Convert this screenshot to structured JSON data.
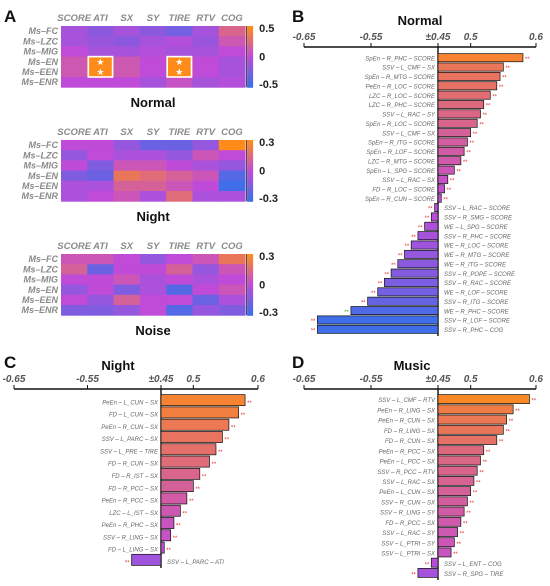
{
  "colors": {
    "cold": "#3f6ee8",
    "mid": "#c04bd8",
    "hot": "#ff8c1a",
    "sig_red": "#e03030",
    "sig_green": "#2eaa2e"
  },
  "panels": {
    "A": {
      "label": "A",
      "heatmaps": [
        {
          "title": "Normal",
          "cbar_ticks": [
            "0.5",
            "0",
            "-0.5"
          ],
          "vmin": -0.5,
          "vmax": 0.5,
          "columns": [
            "SCORE",
            "ATI",
            "SX",
            "SY",
            "TIRE",
            "RTV",
            "COG"
          ],
          "rows": [
            "Ms–FC",
            "Ms–LZC",
            "Ms–MIG",
            "Ms–EN",
            "Ms–EEN",
            "Ms–ENR"
          ],
          "values": [
            [
              -0.1,
              -0.2,
              -0.1,
              -0.2,
              -0.3,
              -0.1,
              0.2
            ],
            [
              -0.1,
              -0.15,
              -0.2,
              -0.1,
              -0.05,
              -0.15,
              0.1
            ],
            [
              0.0,
              -0.1,
              -0.1,
              -0.05,
              -0.1,
              -0.1,
              0.0
            ],
            [
              0.1,
              0.5,
              0.1,
              0.0,
              0.5,
              0.0,
              -0.1
            ],
            [
              0.1,
              0.5,
              0.1,
              0.0,
              0.5,
              0.0,
              -0.1
            ],
            [
              0.0,
              0.0,
              0.0,
              -0.1,
              0.05,
              -0.1,
              -0.05
            ]
          ],
          "highlight_rows": [
            3,
            4
          ],
          "highlight_cols": [
            1,
            4
          ]
        },
        {
          "title": "Night",
          "cbar_ticks": [
            "0.3",
            "0",
            "-0.3"
          ],
          "vmin": -0.3,
          "vmax": 0.3,
          "columns": [
            "SCORE",
            "ATI",
            "SX",
            "SY",
            "TIRE",
            "RTV",
            "COG"
          ],
          "rows": [
            "Ms–FC",
            "Ms–LZC",
            "Ms–MIG",
            "Ms–EN",
            "Ms–EEN",
            "Ms–ENR"
          ],
          "values": [
            [
              0.0,
              0.0,
              -0.1,
              -0.2,
              -0.2,
              -0.1,
              0.3
            ],
            [
              -0.1,
              0.0,
              -0.05,
              -0.05,
              -0.1,
              0.05,
              0.0
            ],
            [
              0.0,
              -0.15,
              0.05,
              0.05,
              0.0,
              -0.05,
              -0.1
            ],
            [
              -0.15,
              -0.2,
              0.2,
              0.15,
              0.1,
              0.05,
              -0.25
            ],
            [
              -0.05,
              -0.05,
              0.1,
              0.1,
              0.05,
              0.0,
              -0.3
            ],
            [
              -0.05,
              0.0,
              0.05,
              -0.05,
              0.15,
              -0.05,
              -0.05
            ]
          ]
        },
        {
          "title": "Noise",
          "cbar_ticks": [
            "0.3",
            "0",
            "-0.3"
          ],
          "vmin": -0.3,
          "vmax": 0.3,
          "columns": [
            "SCORE",
            "ATI",
            "SX",
            "SY",
            "TIRE",
            "RTV",
            "COG"
          ],
          "rows": [
            "Ms–FC",
            "Ms–LZC",
            "Ms–MIG",
            "Ms–EN",
            "Ms–EEN",
            "Ms–ENR"
          ],
          "values": [
            [
              0.05,
              0.05,
              0.0,
              -0.1,
              0.0,
              0.05,
              0.2
            ],
            [
              0.1,
              -0.2,
              0.0,
              0.0,
              0.1,
              -0.1,
              0.05
            ],
            [
              0.0,
              0.0,
              0.05,
              -0.05,
              0.0,
              -0.05,
              0.0
            ],
            [
              -0.1,
              0.0,
              -0.15,
              -0.05,
              -0.25,
              0.0,
              0.05
            ],
            [
              0.0,
              -0.1,
              0.1,
              0.0,
              0.0,
              -0.2,
              -0.05
            ],
            [
              -0.15,
              -0.15,
              -0.1,
              0.0,
              -0.25,
              -0.1,
              -0.15
            ]
          ]
        }
      ]
    },
    "B": {
      "label": "B",
      "title": "Normal"
    },
    "C": {
      "label": "C",
      "title": "Night"
    },
    "D": {
      "label": "D",
      "title": "Music"
    },
    "x_ticks": [
      "-0.65",
      "-0.55",
      "±0.45",
      "0.5",
      "0.6"
    ]
  },
  "chart_data": [
    {
      "type": "heatmap",
      "panel": "A",
      "title": "Normal"
    },
    {
      "type": "heatmap",
      "panel": "A",
      "title": "Night"
    },
    {
      "type": "heatmap",
      "panel": "A",
      "title": "Noise"
    },
    {
      "type": "bar",
      "panel": "B",
      "title": "Normal",
      "orientation": "horizontal",
      "x_ticks": [
        -0.65,
        -0.55,
        0.45,
        0.5,
        0.6
      ],
      "axis_break": "±0.45",
      "categories": [
        "SpEn – R_PHC – SCORE",
        "SSV – L_CMF – SX",
        "SpEn – R_MTG – SCORE",
        "PeEn – R_LOC – SCORE",
        "LZC – R_LOC – SCORE",
        "LZC – R_PHC – SCORE",
        "SSV – L_RAC – SY",
        "SpEn – R_LOC – SCORE",
        "SSV – L_CMF – SX",
        "SpEn – R_ITG – SCORE",
        "SpEn – R_LOF – SCORE",
        "LZC – R_MTG – SCORE",
        "SpEn – L_SPG – SCORE",
        "SSV – L_RAC – SX",
        "FD – R_LOC – SCORE",
        "SpEn – R_CUN – SCORE",
        "SSV – L_RAC – SCORE",
        "SSV – R_SMG – SCORE",
        "WE – L_SPG – SCORE",
        "SSV – R_PHC – SCORE",
        "WE – R_LOC – SCORE",
        "WE – R_MTG – SCORE",
        "WE – R_ITG – SCORE",
        "SSV – R_POPE – SCORE",
        "SSV – R_RAC – SCORE",
        "WE – R_LOF – SCORE",
        "SSV – R_ITG – SCORE",
        "WE – R_PHC – SCORE",
        "SSV – R_LOF – SCORE",
        "SSV – R_PHC – COG"
      ],
      "values": [
        0.58,
        0.55,
        0.545,
        0.54,
        0.53,
        0.52,
        0.515,
        0.51,
        0.5,
        0.495,
        0.49,
        0.485,
        0.475,
        0.465,
        0.46,
        0.455,
        -0.455,
        -0.46,
        -0.47,
        -0.48,
        -0.49,
        -0.5,
        -0.51,
        -0.52,
        -0.53,
        -0.54,
        -0.555,
        -0.58,
        -0.63,
        -0.63
      ],
      "sig": [
        "red",
        "red",
        "red",
        "red",
        "red",
        "red",
        "red",
        "red",
        "red",
        "red",
        "red",
        "red",
        "red",
        "red",
        "red",
        "red",
        "red",
        "red",
        "red",
        "red",
        "red",
        "red",
        "red",
        "red",
        "red",
        "red",
        "red",
        "green",
        "red",
        "red"
      ]
    },
    {
      "type": "bar",
      "panel": "C",
      "title": "Night",
      "orientation": "horizontal",
      "x_ticks": [
        -0.65,
        -0.55,
        0.45,
        0.5,
        0.6
      ],
      "axis_break": "±0.45",
      "categories": [
        "PeEn – L_CUN – SX",
        "FD – L_CUN – SX",
        "PeEn – R_CUN – SX",
        "SSV – L_PARC – SX",
        "SSV – L_PRE – TIRE",
        "FD – R_CUN – SX",
        "FD – R_IST – SX",
        "FD – R_PCC – SX",
        "PeEn – R_PCC – SX",
        "LZC – L_IST – SX",
        "PeEn – R_PHC – SX",
        "SSV – R_LING – SX",
        "FD – L_LING – SX",
        "SSV – L_PARC – ATI"
      ],
      "values": [
        0.58,
        0.57,
        0.555,
        0.545,
        0.535,
        0.525,
        0.51,
        0.5,
        0.49,
        0.48,
        0.47,
        0.465,
        0.455,
        -0.49
      ],
      "sig": [
        "red",
        "red",
        "red",
        "red",
        "red",
        "red",
        "red",
        "red",
        "red",
        "red",
        "red",
        "red",
        "red",
        "red"
      ]
    },
    {
      "type": "bar",
      "panel": "D",
      "title": "Music",
      "orientation": "horizontal",
      "x_ticks": [
        -0.65,
        -0.55,
        0.45,
        0.5,
        0.6
      ],
      "axis_break": "±0.45",
      "categories": [
        "SSV – L_CMF – RTV",
        "PeEn – R_LING – SX",
        "PeEn – R_CUN – SX",
        "FD – R_LING – SX",
        "FD – R_CUN – SX",
        "PeEn – R_PCC – SX",
        "PeEn – L_PCC – SX",
        "SSV – R_PCC – RTV",
        "SSV – L_RAC – SX",
        "PeEn – L_CUN – SX",
        "SSV – R_CUN – SX",
        "SSV – R_LING – SY",
        "FD – R_PCC – SX",
        "SSV – L_RAC – SY",
        "SSV – L_PTRI – SY",
        "SSV – L_PTRI – SX",
        "SSV – L_ENT – COG",
        "SSV – R_SPG – TIRE"
      ],
      "values": [
        0.59,
        0.565,
        0.555,
        0.55,
        0.54,
        0.52,
        0.515,
        0.51,
        0.505,
        0.5,
        0.495,
        0.49,
        0.485,
        0.48,
        0.475,
        0.47,
        -0.46,
        -0.48
      ],
      "sig": [
        "red",
        "red",
        "red",
        "red",
        "red",
        "red",
        "red",
        "red",
        "red",
        "red",
        "red",
        "red",
        "red",
        "red",
        "red",
        "red",
        "red",
        "red"
      ]
    }
  ]
}
